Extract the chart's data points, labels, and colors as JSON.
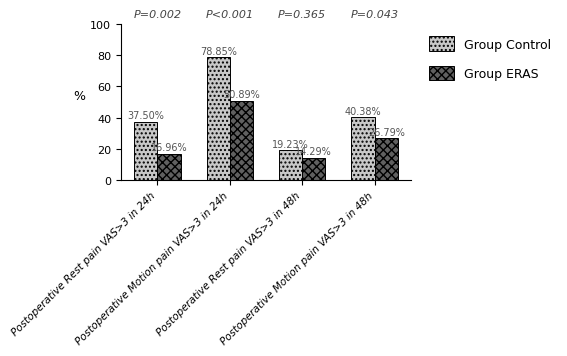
{
  "groups": [
    "Group Control",
    "Group ERAS"
  ],
  "categories": [
    "Postoperative Rest pain VAS>3 in 24h",
    "Postoperative Motion pain VAS>3 in 24h",
    "Postoperative Rest pain VAS>3 in 48h",
    "Postoperative Motion pain VAS>3 in 48h"
  ],
  "control_values": [
    37.5,
    78.85,
    19.23,
    40.38
  ],
  "eras_values": [
    16.96,
    50.89,
    14.29,
    26.79
  ],
  "p_values": [
    "P=0.002",
    "P<0.001",
    "P=0.365",
    "P=0.043"
  ],
  "ylabel": "%",
  "ylim": [
    0,
    100
  ],
  "yticks": [
    0,
    20,
    40,
    60,
    80,
    100
  ],
  "bar_width": 0.32,
  "control_hatch": "....",
  "eras_hatch": "xxxx",
  "control_facecolor": "#c8c8c8",
  "eras_facecolor": "#606060",
  "bar_label_fontsize": 7,
  "pval_fontsize": 8,
  "tick_fontsize": 8,
  "ylabel_fontsize": 9,
  "legend_fontsize": 9
}
